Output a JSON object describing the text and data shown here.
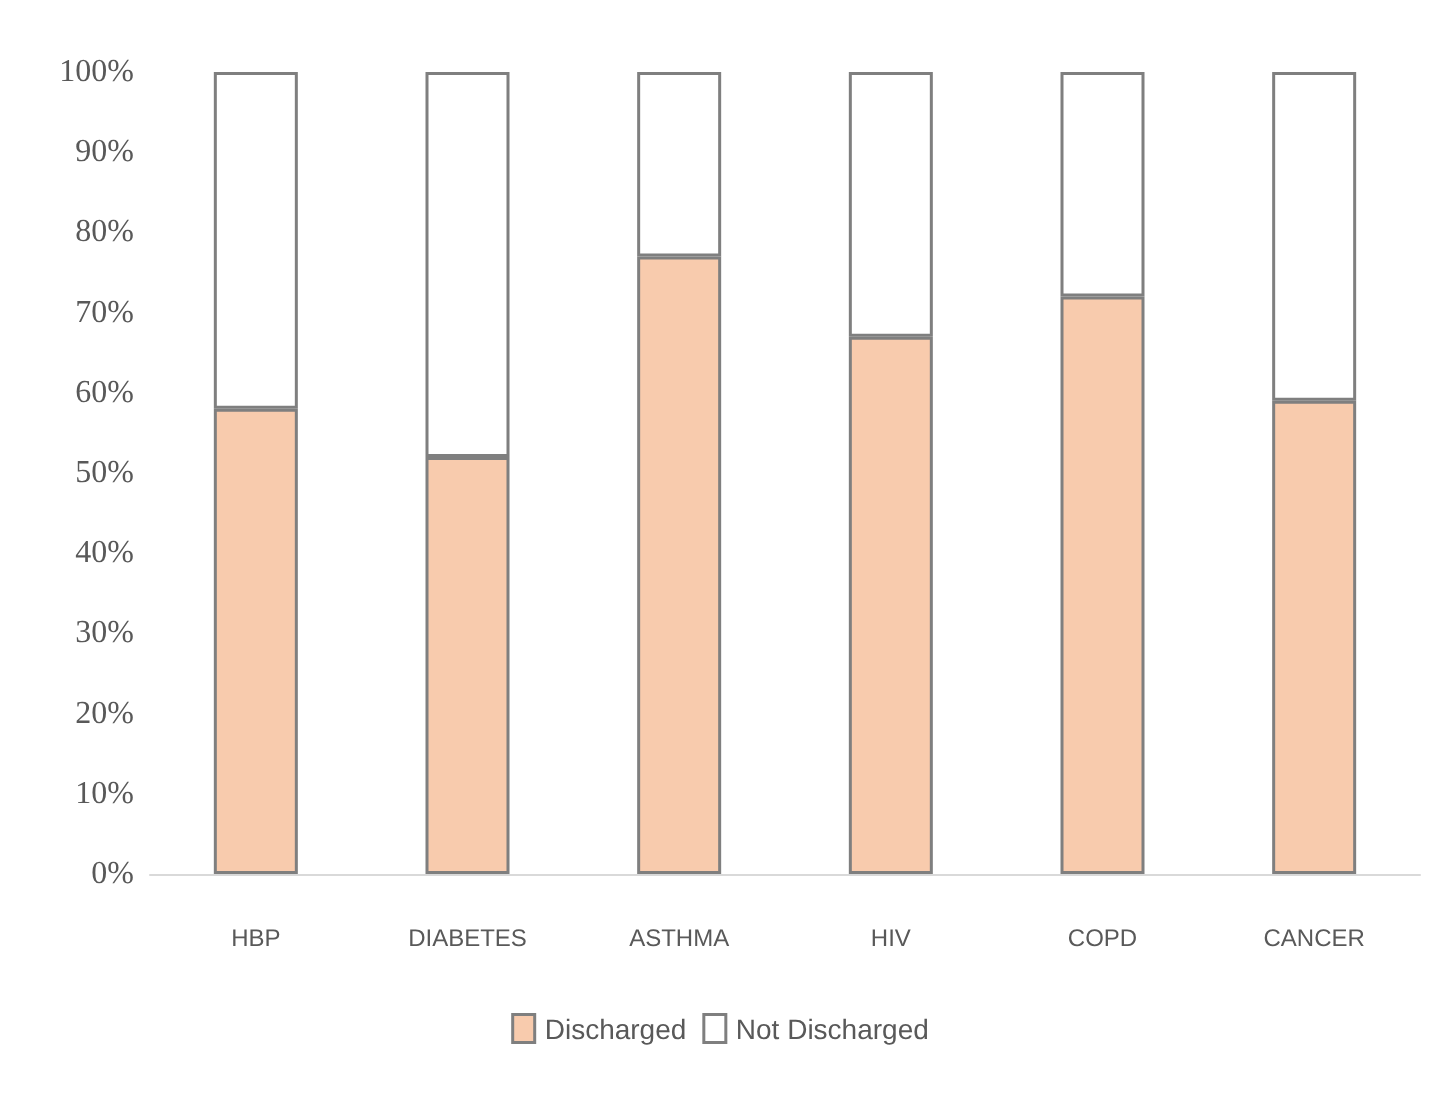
{
  "chart_data": {
    "type": "bar",
    "stacked": true,
    "categories": [
      "HBP",
      "DIABETES",
      "ASTHMA",
      "HIV",
      "COPD",
      "CANCER"
    ],
    "series": [
      {
        "name": "Discharged",
        "color": "#f8cbad",
        "values": [
          58,
          52,
          77,
          67,
          72,
          59
        ]
      },
      {
        "name": "Not Discharged",
        "color": "#ffffff",
        "values": [
          42,
          48,
          23,
          33,
          28,
          41
        ]
      }
    ],
    "ylim": [
      0,
      100
    ],
    "yticks": [
      {
        "value": 0,
        "label": "0%"
      },
      {
        "value": 10,
        "label": "10%"
      },
      {
        "value": 20,
        "label": "20%"
      },
      {
        "value": 30,
        "label": "30%"
      },
      {
        "value": 40,
        "label": "40%"
      },
      {
        "value": 50,
        "label": "50%"
      },
      {
        "value": 60,
        "label": "60%"
      },
      {
        "value": 70,
        "label": "70%"
      },
      {
        "value": 80,
        "label": "80%"
      },
      {
        "value": 90,
        "label": "90%"
      },
      {
        "value": 100,
        "label": "100%"
      }
    ],
    "grid": false,
    "legend": "bottom"
  }
}
